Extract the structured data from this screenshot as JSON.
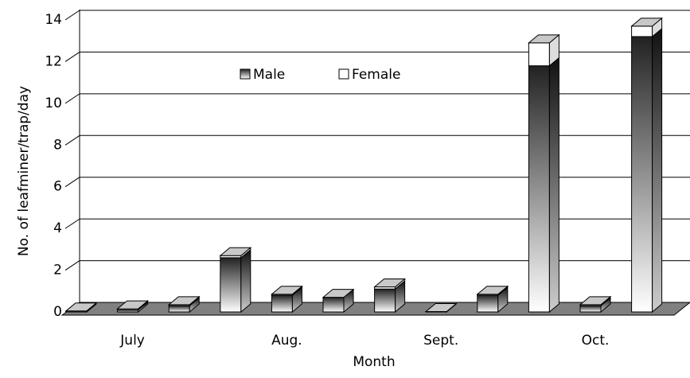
{
  "chart_data": {
    "type": "bar3d-stacked",
    "xlabel": "Month",
    "ylabel": "No. of leafminer/trap/day",
    "categories": [
      null,
      "July",
      null,
      null,
      "Aug.",
      null,
      null,
      "Sept.",
      null,
      null,
      "Oct.",
      null
    ],
    "series": [
      {
        "name": "Male",
        "color": "#333333",
        "values": [
          0.05,
          0.1,
          0.3,
          2.6,
          0.8,
          0.7,
          1.1,
          0.02,
          0.8,
          11.8,
          0.3,
          13.2
        ]
      },
      {
        "name": "Female",
        "color": "#ffffff",
        "values": [
          0,
          0.05,
          0.05,
          0.1,
          0.05,
          0,
          0.1,
          0,
          0.05,
          1.1,
          0.05,
          0.5
        ]
      }
    ],
    "ylim": [
      0,
      14
    ],
    "yticks": [
      0,
      2,
      4,
      6,
      8,
      10,
      12,
      14
    ],
    "grid": true,
    "legend": "top"
  }
}
